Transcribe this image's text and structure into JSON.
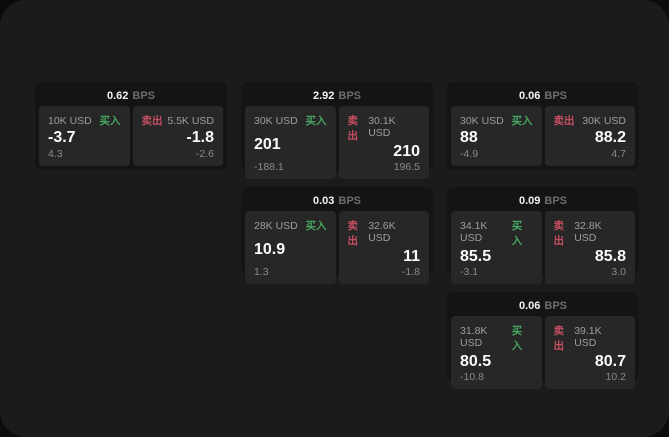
{
  "labels": {
    "bps_unit": "BPS",
    "buy": "买入",
    "sell": "卖出"
  },
  "colors": {
    "buy_green": "#47a561",
    "sell_red": "#c44f62",
    "window_bg": "#1b1b1b",
    "card_bg": "#141414",
    "panel_bg": "#272727"
  },
  "cards": [
    {
      "bps": "0.62",
      "buy": {
        "size": "10K USD",
        "value": "-3.7",
        "sub": "4.3"
      },
      "sell": {
        "size": "5.5K USD",
        "value": "-1.8",
        "sub": "-2.6"
      }
    },
    {
      "bps": "2.92",
      "buy": {
        "size": "30K USD",
        "value": "201",
        "sub": "-188.1"
      },
      "sell": {
        "size": "30.1K USD",
        "value": "210",
        "sub": "196.5"
      }
    },
    {
      "bps": "0.06",
      "buy": {
        "size": "30K USD",
        "value": "88",
        "sub": "-4.9"
      },
      "sell": {
        "size": "30K USD",
        "value": "88.2",
        "sub": "4.7"
      }
    },
    {
      "bps": "0.03",
      "buy": {
        "size": "28K USD",
        "value": "10.9",
        "sub": "1.3"
      },
      "sell": {
        "size": "32.6K USD",
        "value": "11",
        "sub": "-1.8"
      }
    },
    {
      "bps": "0.09",
      "buy": {
        "size": "34.1K USD",
        "value": "85.5",
        "sub": "-3.1"
      },
      "sell": {
        "size": "32.8K USD",
        "value": "85.8",
        "sub": "3.0"
      }
    },
    {
      "bps": "0.06",
      "buy": {
        "size": "31.8K USD",
        "value": "80.5",
        "sub": "-10.8"
      },
      "sell": {
        "size": "39.1K USD",
        "value": "80.7",
        "sub": "10.2"
      }
    }
  ]
}
